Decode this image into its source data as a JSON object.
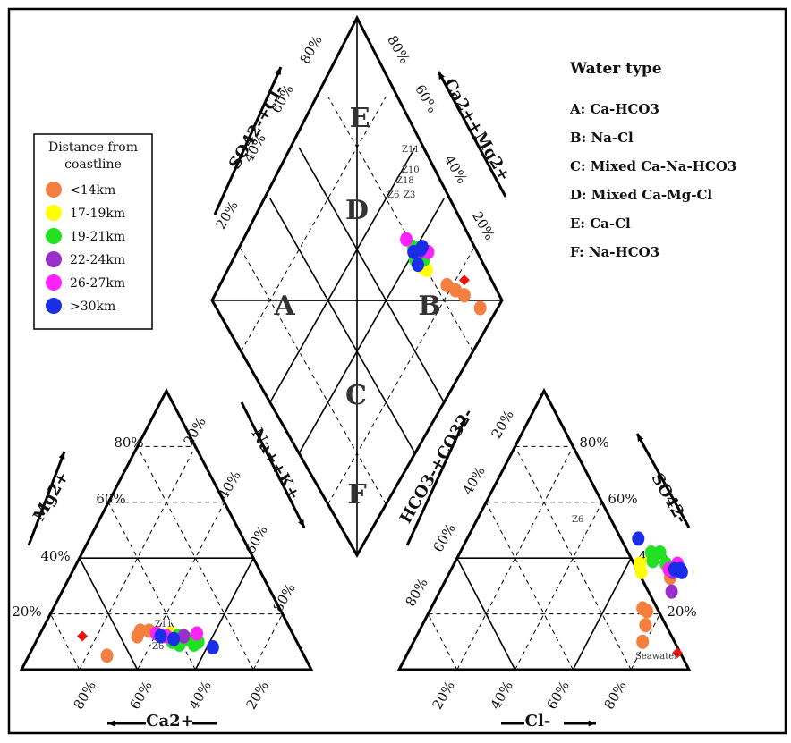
{
  "colors": {
    "lt14": "#f47f3e",
    "c17_19": "#ffff00",
    "c19_21": "#22e022",
    "c22_24": "#9b2fcc",
    "c26_27": "#ff22ff",
    "gt30": "#1a2ee8",
    "seawater": "#e8160c"
  },
  "legend": {
    "title_line1": "Distance from",
    "title_line2": "coastline",
    "items": [
      {
        "label": "<14km",
        "color_key": "lt14"
      },
      {
        "label": "17-19km",
        "color_key": "c17_19"
      },
      {
        "label": "19-21km",
        "color_key": "c19_21"
      },
      {
        "label": "22-24km",
        "color_key": "c22_24"
      },
      {
        "label": "26-27km",
        "color_key": "c26_27"
      },
      {
        "label": ">30km",
        "color_key": "gt30"
      }
    ]
  },
  "water_type": {
    "title": "Water type",
    "items": [
      "A: Ca-HCO3",
      "B: Na-Cl",
      "C: Mixed Ca-Na-HCO3",
      "D: Mixed Ca-Mg-Cl",
      "E: Ca-Cl",
      "F: Na-HCO3"
    ]
  },
  "diamond": {
    "letters": [
      "E",
      "D",
      "A",
      "B",
      "C",
      "F"
    ],
    "axis_left": "SO42-+Cl-",
    "axis_right": "Ca2++Mg2+",
    "ticks_left": [
      "80%",
      "60%",
      "40%",
      "20%"
    ],
    "ticks_right": [
      "80%",
      "60%",
      "40%",
      "20%"
    ],
    "sample_labels": [
      "Z11",
      "Z10",
      "Z18",
      "Z6",
      "Z3"
    ]
  },
  "cation": {
    "axis_mg": "Mg2+",
    "axis_ca": "Ca2+",
    "axis_nak": "Na++K+",
    "ticks_mg": [
      "80%",
      "60%",
      "40%",
      "20%"
    ],
    "ticks_ca": [
      "80%",
      "60%",
      "40%",
      "20%"
    ],
    "ticks_nak": [
      "20%",
      "40%",
      "60%",
      "80%"
    ],
    "sample_labels": [
      "Z11",
      "Z6"
    ]
  },
  "anion": {
    "axis_hco3": "HCO3-+CO32-",
    "axis_so4": "SO42-",
    "axis_cl": "Cl-",
    "ticks_hco3": [
      "20%",
      "40%",
      "60%",
      "80%"
    ],
    "ticks_so4": [
      "80%",
      "60%",
      "40%",
      "20%"
    ],
    "ticks_cl": [
      "20%",
      "40%",
      "60%",
      "80%"
    ],
    "sample_labels": [
      "Z6",
      "Seawater"
    ]
  },
  "chart_data": {
    "type": "scatter",
    "title": "",
    "diagram": "Piper trilinear diagram",
    "series": [
      {
        "name": "<14km",
        "color_key": "lt14",
        "cation": [
          [
            49,
            14
          ],
          [
            52,
            14
          ],
          [
            68,
            5
          ],
          [
            54,
            12
          ]
        ],
        "anion": [
          [
            73,
            22
          ],
          [
            75,
            21
          ],
          [
            77,
            16
          ],
          [
            79,
            10
          ],
          [
            77,
            33
          ]
        ],
        "diamond": [
          [
            84,
            22
          ],
          [
            86,
            18
          ],
          [
            88,
            14
          ],
          [
            91,
            6
          ]
        ]
      },
      {
        "name": "17-19km",
        "color_key": "c17_19",
        "cation": [
          [
            42,
            13
          ],
          [
            44,
            12
          ]
        ],
        "anion": [
          [
            64,
            38
          ],
          [
            66,
            35
          ],
          [
            67,
            40
          ]
        ],
        "diamond": [
          [
            79,
            34
          ],
          [
            80,
            32
          ]
        ]
      },
      {
        "name": "19-21km",
        "color_key": "c19_21",
        "cation": [
          [
            37,
            11
          ],
          [
            40,
            12
          ],
          [
            41,
            9
          ],
          [
            43,
            10
          ],
          [
            36,
            9
          ],
          [
            34,
            10
          ]
        ],
        "anion": [
          [
            66,
            42
          ],
          [
            69,
            42
          ],
          [
            68,
            39
          ],
          [
            73,
            38
          ]
        ],
        "diamond": [
          [
            78,
            38
          ],
          [
            80,
            36
          ],
          [
            81,
            35
          ],
          [
            80,
            41
          ]
        ]
      },
      {
        "name": "22-24km",
        "color_key": "c22_24",
        "cation": [
          [
            38,
            12
          ]
        ],
        "anion": [
          [
            77,
            35
          ],
          [
            80,
            28
          ]
        ],
        "diamond": [
          [
            81,
            38
          ]
        ]
      },
      {
        "name": "26-27km",
        "color_key": "c26_27",
        "cation": [
          [
            33,
            13
          ],
          [
            47,
            13
          ],
          [
            44,
            12
          ]
        ],
        "anion": [
          [
            75,
            36
          ],
          [
            77,
            38
          ]
        ],
        "diamond": [
          [
            79,
            45
          ],
          [
            84,
            35
          ]
        ]
      },
      {
        "name": ">30km",
        "color_key": "gt30",
        "cation": [
          [
            30,
            8
          ],
          [
            46,
            12
          ],
          [
            42,
            11
          ]
        ],
        "anion": [
          [
            59,
            47
          ],
          [
            77,
            36
          ],
          [
            79,
            36
          ],
          [
            80,
            35
          ]
        ],
        "diamond": [
          [
            79,
            40
          ],
          [
            82,
            38
          ],
          [
            83,
            38
          ],
          [
            78,
            36
          ]
        ]
      },
      {
        "name": "Seawater",
        "color_key": "seawater",
        "cation": [
          [
            73,
            12
          ]
        ],
        "anion": [
          [
            93,
            6
          ]
        ],
        "diamond": [
          [
            91,
            17
          ]
        ]
      }
    ]
  }
}
